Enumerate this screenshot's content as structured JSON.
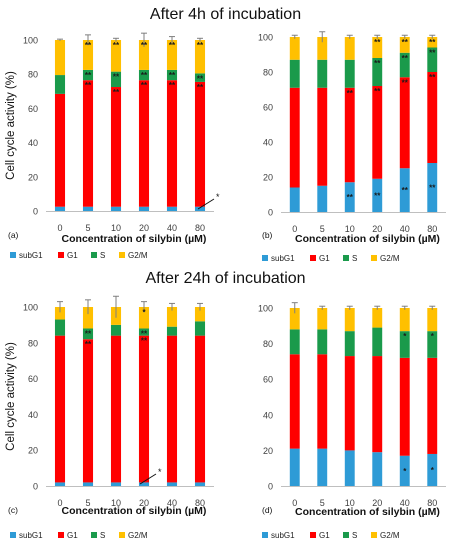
{
  "sections": [
    {
      "title": "After 4h  of incubation"
    },
    {
      "title": "After 24h  of incubation"
    }
  ],
  "colors": {
    "subG1": "#2e9bd6",
    "G1": "#ff0000",
    "S": "#1a9a4b",
    "G2/M": "#ffc000",
    "axis": "#bfbfbf",
    "error": "#7f7f7f",
    "sig": "#1a1a1a"
  },
  "chart_data": [
    {
      "panel_label": "(a)",
      "type": "bar",
      "stacked": true,
      "categories": [
        "0",
        "5",
        "10",
        "20",
        "40",
        "80"
      ],
      "xlabel": "Concentration  of  silybin  (µM)",
      "ylabel": "Cell cycle activity  (%)",
      "ylim": [
        0,
        100
      ],
      "yticks": [
        "0",
        "20",
        "40",
        "60",
        "80",
        "100"
      ],
      "series": [
        {
          "name": "subG1",
          "values": [
            2.5,
            2.5,
            2.5,
            2.5,
            2.5,
            2.5
          ]
        },
        {
          "name": "G1",
          "values": [
            66,
            74,
            70,
            74,
            74,
            73
          ]
        },
        {
          "name": "S",
          "values": [
            11,
            6,
            9,
            6,
            6,
            5
          ]
        },
        {
          "name": "G2/M",
          "values": [
            20.5,
            17.5,
            18.5,
            17.5,
            17.5,
            19.5
          ]
        }
      ],
      "error_tops": [
        0.5,
        3,
        1,
        4,
        2,
        1
      ],
      "significance": [
        {
          "series": "G1",
          "categories": [
            1,
            2,
            3,
            4,
            5
          ],
          "mark": "**"
        },
        {
          "series": "S",
          "categories": [
            1,
            2,
            3,
            4,
            5
          ],
          "mark": "**"
        },
        {
          "series": "G2/M",
          "categories": [
            1,
            2,
            3,
            4,
            5
          ],
          "mark": "**"
        }
      ],
      "annotation": "*",
      "legend": [
        "subG1",
        "G1",
        "S",
        "G2/M"
      ],
      "legend_position": "bottom"
    },
    {
      "panel_label": "(b)",
      "type": "bar",
      "stacked": true,
      "categories": [
        "0",
        "5",
        "10",
        "20",
        "40",
        "80"
      ],
      "xlabel": "Concentration  of  silybin  (µM)",
      "ylabel": "",
      "ylim": [
        0,
        100
      ],
      "yticks": [
        "0",
        "20",
        "40",
        "60",
        "80",
        "100"
      ],
      "series": [
        {
          "name": "subG1",
          "values": [
            14,
            15,
            17,
            19,
            25,
            28
          ]
        },
        {
          "name": "G1",
          "values": [
            57,
            56,
            54,
            53,
            52,
            52
          ]
        },
        {
          "name": "S",
          "values": [
            16,
            16,
            16,
            16,
            14,
            14
          ]
        },
        {
          "name": "G2/M",
          "values": [
            13,
            13,
            13,
            12,
            9,
            6
          ]
        }
      ],
      "error_tops": [
        1,
        3,
        1,
        1,
        1,
        1
      ],
      "significance": [
        {
          "series": "subG1",
          "categories": [
            2,
            3,
            4,
            5
          ],
          "mark": "**"
        },
        {
          "series": "G1",
          "categories": [
            2,
            3,
            4,
            5
          ],
          "mark": "**"
        },
        {
          "series": "S",
          "categories": [
            3,
            4,
            5
          ],
          "mark": "**"
        },
        {
          "series": "G2/M",
          "categories": [
            3,
            4,
            5
          ],
          "mark": "**"
        }
      ],
      "annotation": "",
      "legend": [
        "subG1",
        "G1",
        "S",
        "G2/M"
      ],
      "legend_position": "bottom"
    },
    {
      "panel_label": "(c)",
      "type": "bar",
      "stacked": true,
      "categories": [
        "0",
        "5",
        "10",
        "20",
        "40",
        "80"
      ],
      "xlabel": "Concentration  of  silybin  (µM)",
      "ylabel": "Cell cycle activity  (%)",
      "ylim": [
        0,
        100
      ],
      "yticks": [
        "0",
        "20",
        "40",
        "60",
        "80",
        "100"
      ],
      "series": [
        {
          "name": "subG1",
          "values": [
            2,
            2,
            2,
            2,
            2,
            2
          ]
        },
        {
          "name": "G1",
          "values": [
            82,
            80,
            82,
            82,
            82,
            82
          ]
        },
        {
          "name": "S",
          "values": [
            9,
            6,
            6,
            4,
            5,
            8
          ]
        },
        {
          "name": "G2/M",
          "values": [
            7,
            12,
            10,
            12,
            11,
            8
          ]
        }
      ],
      "error_tops": [
        3,
        4,
        6,
        3,
        2,
        2
      ],
      "significance": [
        {
          "series": "G1",
          "categories": [
            1,
            3
          ],
          "mark": "**"
        },
        {
          "series": "S",
          "categories": [
            1,
            3
          ],
          "mark": "**"
        },
        {
          "series": "G2/M",
          "categories": [
            3
          ],
          "mark": "*"
        }
      ],
      "annotation": "*",
      "legend": [
        "subG1",
        "G1",
        "S",
        "G2/M"
      ],
      "legend_position": "bottom"
    },
    {
      "panel_label": "(d)",
      "type": "bar",
      "stacked": true,
      "categories": [
        "0",
        "5",
        "10",
        "20",
        "40",
        "80"
      ],
      "xlabel": "Concentration  of  silybin  (µM)",
      "ylabel": "",
      "ylim": [
        0,
        100
      ],
      "yticks": [
        "0",
        "20",
        "40",
        "60",
        "80",
        "100"
      ],
      "series": [
        {
          "name": "subG1",
          "values": [
            21,
            21,
            20,
            19,
            17,
            18
          ]
        },
        {
          "name": "G1",
          "values": [
            53,
            53,
            53,
            54,
            55,
            54
          ]
        },
        {
          "name": "S",
          "values": [
            14,
            14,
            14,
            16,
            15,
            15
          ]
        },
        {
          "name": "G2/M",
          "values": [
            12,
            12,
            13,
            11,
            13,
            13
          ]
        }
      ],
      "error_tops": [
        3,
        1,
        1,
        1,
        1,
        1
      ],
      "significance": [
        {
          "series": "subG1",
          "categories": [
            4,
            5
          ],
          "mark": "*"
        },
        {
          "series": "S",
          "categories": [
            4,
            5
          ],
          "mark": "*"
        }
      ],
      "annotation": "",
      "legend": [
        "subG1",
        "G1",
        "S",
        "G2/M"
      ],
      "legend_position": "bottom"
    }
  ]
}
